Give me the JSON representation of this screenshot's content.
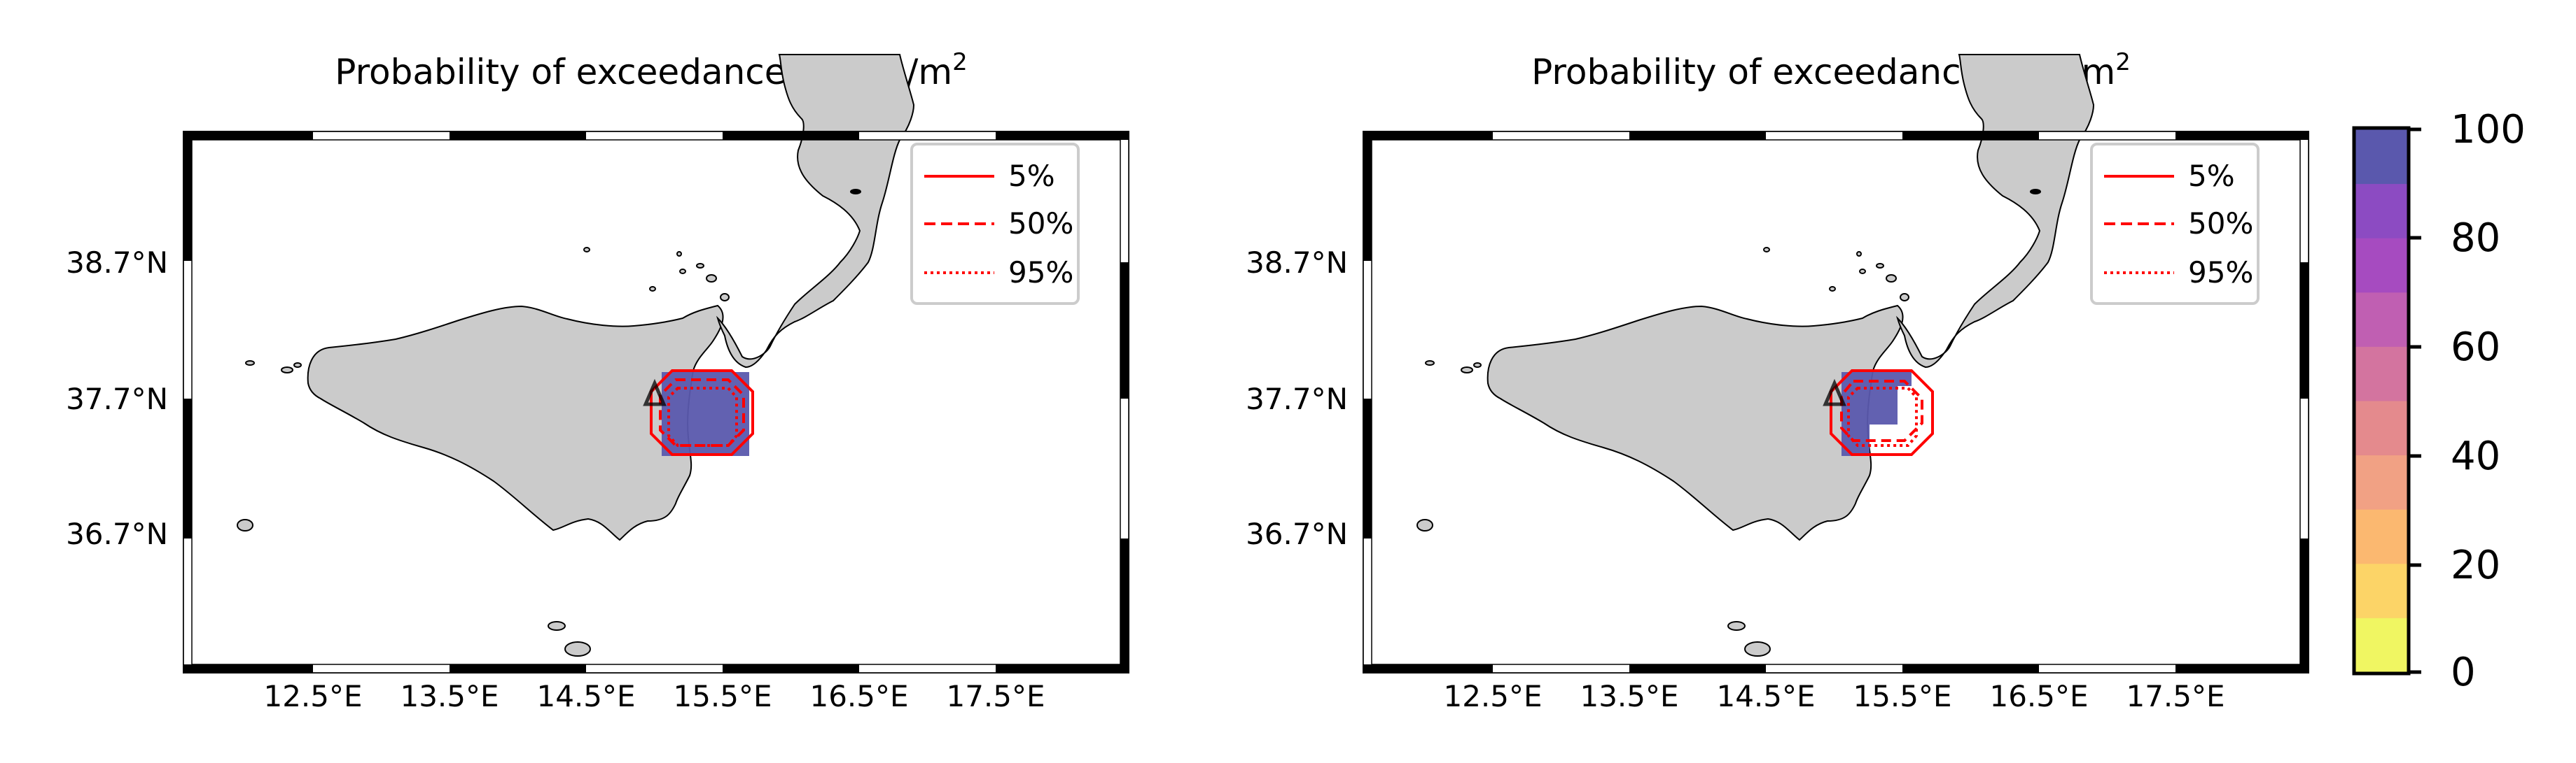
{
  "panels": [
    {
      "title_main": "Probability of exceedance 0.5 kg/m",
      "title_sup": "2",
      "lat_labels": [
        "38.7°N",
        "37.7°N",
        "36.7°N"
      ],
      "lon_labels": [
        "12.5°E",
        "13.5°E",
        "14.5°E",
        "15.5°E",
        "16.5°E",
        "17.5°E"
      ],
      "legend": [
        "5%",
        "50%",
        "95%"
      ]
    },
    {
      "title_main": "Probability of exceedance 5 kg/m",
      "title_sup": "2",
      "lat_labels": [
        "38.7°N",
        "37.7°N",
        "36.7°N"
      ],
      "lon_labels": [
        "12.5°E",
        "13.5°E",
        "14.5°E",
        "15.5°E",
        "16.5°E",
        "17.5°E"
      ],
      "legend": [
        "5%",
        "50%",
        "95%"
      ]
    }
  ],
  "colorbar": {
    "ticks": [
      "100",
      "80",
      "60",
      "40",
      "20",
      "0"
    ],
    "colors": [
      "#f0f662",
      "#fcd467",
      "#fbb870",
      "#f1a184",
      "#e48a8d",
      "#d3749f",
      "#c05fb2",
      "#a64bc0",
      "#8c4bc2",
      "#5a58ad"
    ]
  },
  "colors": {
    "land": "#cbcbcb",
    "probability_fill": "#5a58ad",
    "contour": "#ff0000",
    "volcano": "#000000"
  },
  "chart_data": [
    {
      "type": "map",
      "title": "Probability of exceedance 0.5 kg/m2",
      "region": "Sicily and Calabria",
      "lon_ticks": [
        12.5,
        13.5,
        14.5,
        15.5,
        16.5,
        17.5
      ],
      "lat_ticks": [
        38.7,
        37.7,
        36.7
      ],
      "contours": [
        "5%",
        "50%",
        "95%"
      ],
      "probability_max": 100
    },
    {
      "type": "map",
      "title": "Probability of exceedance 5 kg/m2",
      "region": "Sicily and Calabria",
      "lon_ticks": [
        12.5,
        13.5,
        14.5,
        15.5,
        16.5,
        17.5
      ],
      "lat_ticks": [
        38.7,
        37.7,
        36.7
      ],
      "contours": [
        "5%",
        "50%",
        "95%"
      ],
      "probability_max": 100
    }
  ]
}
